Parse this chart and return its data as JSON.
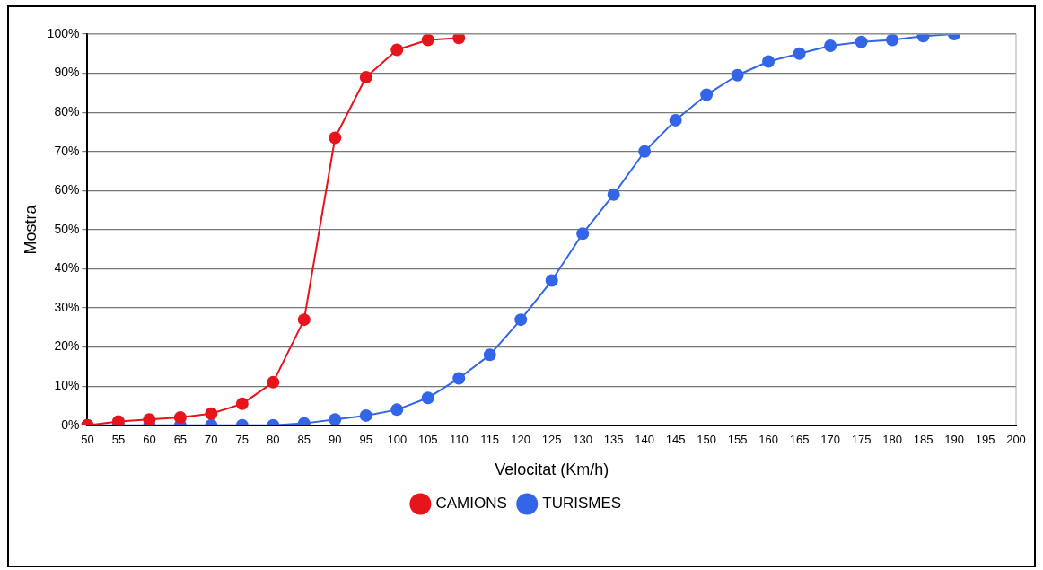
{
  "chart_data": {
    "type": "line",
    "xlabel": "Velocitat (Km/h)",
    "ylabel": "Mostra",
    "categories": [
      "50",
      "55",
      "60",
      "65",
      "70",
      "75",
      "80",
      "85",
      "90",
      "95",
      "100",
      "105",
      "110",
      "115",
      "120",
      "125",
      "130",
      "135",
      "140",
      "145",
      "150",
      "155",
      "160",
      "165",
      "170",
      "175",
      "180",
      "185",
      "190",
      "195",
      "200"
    ],
    "series": [
      {
        "name": "CAMIONS",
        "color": "#e8141c",
        "values": [
          0,
          1,
          1.5,
          2,
          3,
          5.5,
          11,
          27,
          73.5,
          89,
          96,
          98.5,
          99,
          null,
          null,
          null,
          null,
          null,
          null,
          null,
          null,
          null,
          null,
          null,
          null,
          null,
          null,
          null,
          null,
          null,
          null
        ]
      },
      {
        "name": "TURISMES",
        "color": "#3366e6",
        "values": [
          0,
          0,
          0,
          0,
          0,
          0,
          0,
          0.5,
          1.5,
          2.5,
          4,
          7,
          12,
          18,
          27,
          37,
          49,
          59,
          70,
          78,
          84.5,
          89.5,
          93,
          95,
          97,
          98,
          98.5,
          99.5,
          100,
          null,
          null
        ]
      }
    ],
    "ylim": [
      0,
      100
    ],
    "yticks": [
      {
        "value": 0,
        "label": "0%"
      },
      {
        "value": 10,
        "label": "10%"
      },
      {
        "value": 20,
        "label": "20%"
      },
      {
        "value": 30,
        "label": "30%"
      },
      {
        "value": 40,
        "label": "40%"
      },
      {
        "value": 50,
        "label": "50%"
      },
      {
        "value": 60,
        "label": "60%"
      },
      {
        "value": 70,
        "label": "70%"
      },
      {
        "value": 80,
        "label": "80%"
      },
      {
        "value": 90,
        "label": "90%"
      },
      {
        "value": 100,
        "label": "100%"
      }
    ],
    "grid": "y",
    "legend": "bottom",
    "marker": "circle",
    "line_style": "solid"
  }
}
